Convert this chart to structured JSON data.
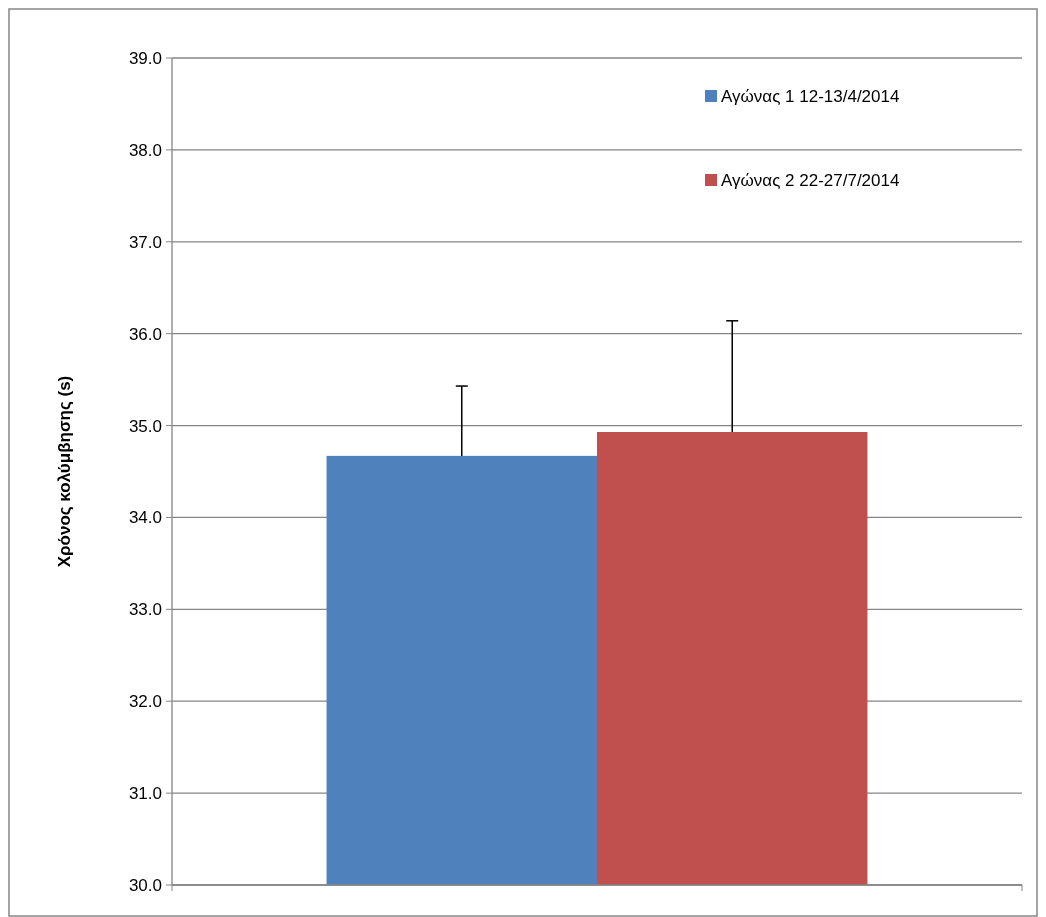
{
  "chart_data": {
    "type": "bar",
    "ylabel": "Χρόνος κολύμβησης (s)",
    "categories": [
      null
    ],
    "series": [
      {
        "name": "Αγώνας 1 12-13/4/2014",
        "color": "#4f81bd",
        "values": [
          34.67
        ],
        "errors": [
          [
            34.67,
            35.43
          ]
        ]
      },
      {
        "name": "Αγώνας 2 22-27/7/2014",
        "color": "#c0504d",
        "values": [
          34.93
        ],
        "errors": [
          [
            34.93,
            36.14
          ]
        ]
      }
    ],
    "ylim": [
      30,
      39
    ],
    "yticks": [
      {
        "value": 30,
        "label": "30.0"
      },
      {
        "value": 31,
        "label": "31.0"
      },
      {
        "value": 32,
        "label": "32.0"
      },
      {
        "value": 33,
        "label": "33.0"
      },
      {
        "value": 34,
        "label": "34.0"
      },
      {
        "value": 35,
        "label": "35.0"
      },
      {
        "value": 36,
        "label": "36.0"
      },
      {
        "value": 37,
        "label": "37.0"
      },
      {
        "value": 38,
        "label": "38.0"
      },
      {
        "value": 39,
        "label": "39.0"
      }
    ],
    "grid": "y",
    "legend": "top right"
  }
}
